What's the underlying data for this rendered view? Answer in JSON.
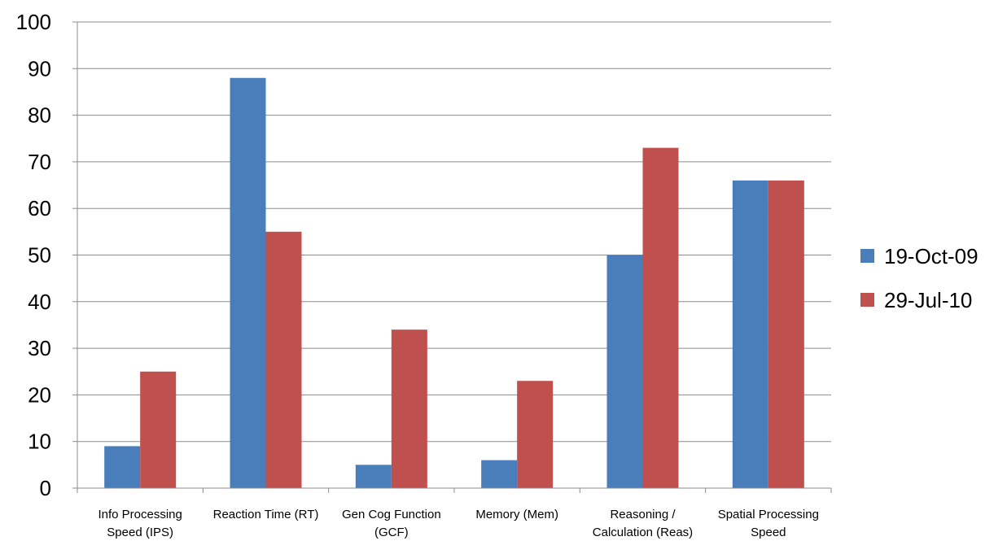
{
  "chart_data": {
    "type": "bar",
    "categories": [
      [
        "Info Processing",
        "Speed (IPS)"
      ],
      [
        "Reaction Time (RT)"
      ],
      [
        "Gen Cog Function",
        "(GCF)"
      ],
      [
        "Memory (Mem)"
      ],
      [
        "Reasoning /",
        "Calculation (Reas)"
      ],
      [
        "Spatial Processing",
        "Speed"
      ]
    ],
    "series": [
      {
        "name": "19-Oct-09",
        "color": "#4a7ebb",
        "values": [
          9,
          88,
          5,
          6,
          50,
          66
        ]
      },
      {
        "name": "29-Jul-10",
        "color": "#c0504d",
        "values": [
          25,
          55,
          34,
          23,
          73,
          66
        ]
      }
    ],
    "ylim": [
      0,
      100
    ],
    "yticks": [
      0,
      10,
      20,
      30,
      40,
      50,
      60,
      70,
      80,
      90,
      100
    ],
    "grid": true,
    "legend": "right"
  }
}
